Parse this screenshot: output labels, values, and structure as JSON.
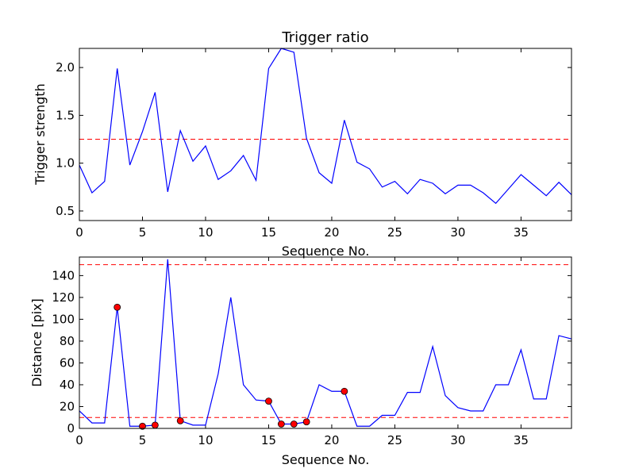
{
  "chart_data": [
    {
      "type": "line",
      "title": "Trigger ratio",
      "xlabel": "Sequence No.",
      "ylabel": "Trigger strength",
      "xlim": [
        0,
        39
      ],
      "ylim": [
        0.4,
        2.2
      ],
      "xticks": [
        0,
        5,
        10,
        15,
        20,
        25,
        30,
        35
      ],
      "yticks": [
        0.5,
        1.0,
        1.5,
        2.0
      ],
      "x": [
        0,
        1,
        2,
        3,
        4,
        5,
        6,
        7,
        8,
        9,
        10,
        11,
        12,
        13,
        14,
        15,
        16,
        17,
        18,
        19,
        20,
        21,
        22,
        23,
        24,
        25,
        26,
        27,
        28,
        29,
        30,
        31,
        32,
        33,
        34,
        35,
        36,
        37,
        38,
        39
      ],
      "series": [
        {
          "color": "#0000ff",
          "values": [
            0.98,
            0.69,
            0.81,
            1.99,
            0.98,
            1.33,
            1.74,
            0.7,
            1.34,
            1.02,
            1.18,
            0.83,
            0.92,
            1.08,
            0.82,
            1.99,
            2.2,
            2.16,
            1.26,
            0.9,
            0.79,
            1.45,
            1.01,
            0.94,
            0.75,
            0.81,
            0.68,
            0.83,
            0.79,
            0.68,
            0.77,
            0.77,
            0.69,
            0.58,
            0.73,
            0.88,
            0.77,
            0.66,
            0.8,
            0.67
          ]
        }
      ],
      "threshold_lines": [
        {
          "y": 1.25,
          "color": "#ff0000",
          "style": "dashed"
        }
      ],
      "grid": false
    },
    {
      "type": "line",
      "title": "",
      "xlabel": "Sequence No.",
      "ylabel": "Distance [pix]",
      "xlim": [
        0,
        39
      ],
      "ylim": [
        0,
        157
      ],
      "xticks": [
        0,
        5,
        10,
        15,
        20,
        25,
        30,
        35
      ],
      "yticks": [
        0,
        20,
        40,
        60,
        80,
        100,
        120,
        140
      ],
      "x": [
        0,
        1,
        2,
        3,
        4,
        5,
        6,
        7,
        8,
        9,
        10,
        11,
        12,
        13,
        14,
        15,
        16,
        17,
        18,
        19,
        20,
        21,
        22,
        23,
        24,
        25,
        26,
        27,
        28,
        29,
        30,
        31,
        32,
        33,
        34,
        35,
        36,
        37,
        38,
        39
      ],
      "series": [
        {
          "color": "#0000ff",
          "values": [
            16,
            5,
            5,
            111,
            2,
            2,
            3,
            155,
            7,
            3,
            3,
            50,
            120,
            40,
            26,
            25,
            4,
            4,
            6,
            40,
            34,
            34,
            2,
            2,
            12,
            12,
            33,
            33,
            75,
            30,
            19,
            16,
            16,
            40,
            40,
            72,
            27,
            27,
            85,
            82
          ]
        }
      ],
      "markers": {
        "color": "#ff0000",
        "points": [
          [
            3,
            111
          ],
          [
            5,
            2
          ],
          [
            6,
            3
          ],
          [
            8,
            7
          ],
          [
            15,
            25
          ],
          [
            16,
            4
          ],
          [
            17,
            4
          ],
          [
            18,
            6
          ],
          [
            21,
            34
          ]
        ]
      },
      "threshold_lines": [
        {
          "y": 150,
          "color": "#ff0000",
          "style": "dashed"
        },
        {
          "y": 10,
          "color": "#ff0000",
          "style": "dashed"
        }
      ],
      "grid": false
    }
  ]
}
